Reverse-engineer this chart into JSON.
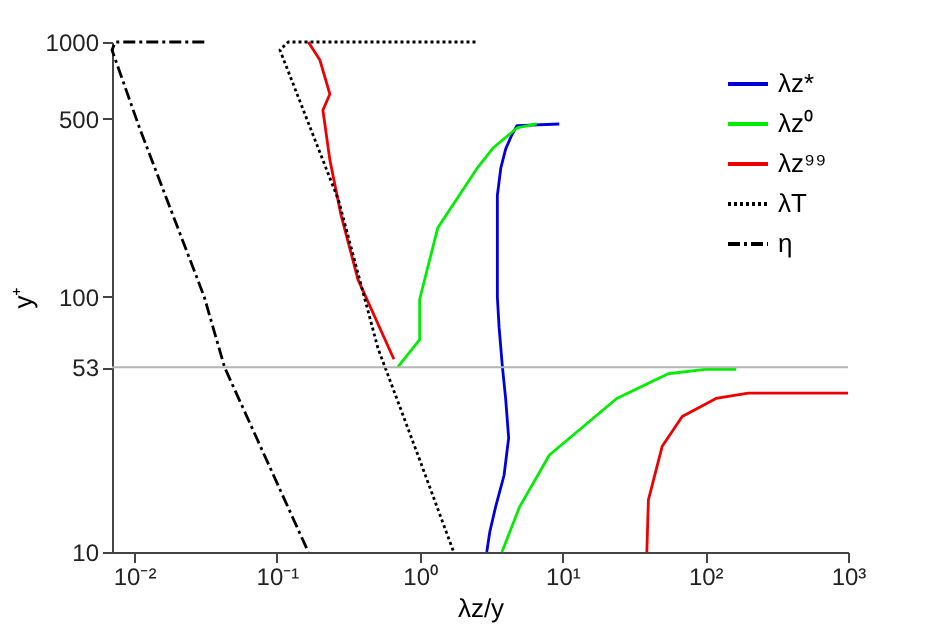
{
  "chart_data": {
    "type": "line",
    "xlabel": "λz/y",
    "ylabel": "y⁺",
    "log": "xy",
    "grid": false,
    "legend": "top right",
    "marker": "none",
    "xlim": [
      0.007,
      1000
    ],
    "ylim": [
      10,
      1000
    ],
    "xticks": [
      {
        "value": 0.01,
        "label": "10⁻²"
      },
      {
        "value": 0.1,
        "label": "10⁻¹"
      },
      {
        "value": 1,
        "label": "10⁰"
      },
      {
        "value": 10,
        "label": "10¹"
      },
      {
        "value": 100,
        "label": "10²"
      },
      {
        "value": 1000,
        "label": "10³"
      }
    ],
    "yticks": [
      10,
      53,
      100,
      500,
      1000
    ],
    "ref_lines": [
      {
        "axis": "y",
        "value": 53,
        "color": "#b4b4b4",
        "line_style": "solid"
      }
    ],
    "series": [
      {
        "name": "λz*",
        "color": "#0000dd",
        "line_style": "solid",
        "x": [
          2.95,
          3.1,
          3.4,
          3.9,
          4.2,
          4.0,
          3.8,
          3.6,
          3.5,
          3.5,
          3.5,
          3.7,
          4.0,
          4.4,
          4.8,
          9.5
        ],
        "values": [
          10,
          12,
          15,
          20,
          28,
          40,
          53,
          76,
          100,
          150,
          250,
          320,
          380,
          430,
          470,
          477
        ]
      },
      {
        "name": "λz⁰",
        "color": "#00ee00",
        "line_style": "solid",
        "x": [
          3.77,
          5.0,
          8.1,
          24,
          55,
          100,
          165,
          null,
          0.7,
          1.0,
          1.0,
          1.34,
          2.54,
          3.28,
          4.8,
          6.6
        ],
        "values": [
          10,
          15,
          24,
          40,
          50,
          52,
          52,
          null,
          53,
          68,
          98,
          187,
          321,
          385,
          460,
          477
        ]
      },
      {
        "name": "λz⁹⁹",
        "color": "#ee0000",
        "line_style": "solid",
        "x": [
          39,
          40,
          50,
          69,
          119,
          200,
          1000,
          null,
          0.66,
          0.37,
          0.28,
          0.235,
          0.21,
          0.235,
          0.2,
          0.166
        ],
        "values": [
          10,
          16,
          26,
          34,
          40,
          42,
          42,
          null,
          57,
          117,
          212,
          345,
          540,
          625,
          850,
          1000
        ]
      },
      {
        "name": "λT",
        "color": "#000000",
        "line_style": "dotted",
        "x": [
          2.46,
          0.12,
          0.105,
          0.27,
          0.51,
          1.0,
          1.73
        ],
        "values": [
          1000,
          1000,
          930,
          240,
          63,
          23,
          10
        ]
      },
      {
        "name": "η",
        "color": "#000000",
        "line_style": "dashdot",
        "x": [
          0.031,
          0.0074,
          0.007,
          0.0109,
          0.031,
          0.043,
          0.166
        ],
        "values": [
          1000,
          1000,
          930,
          461,
          100,
          53,
          10
        ]
      }
    ]
  }
}
